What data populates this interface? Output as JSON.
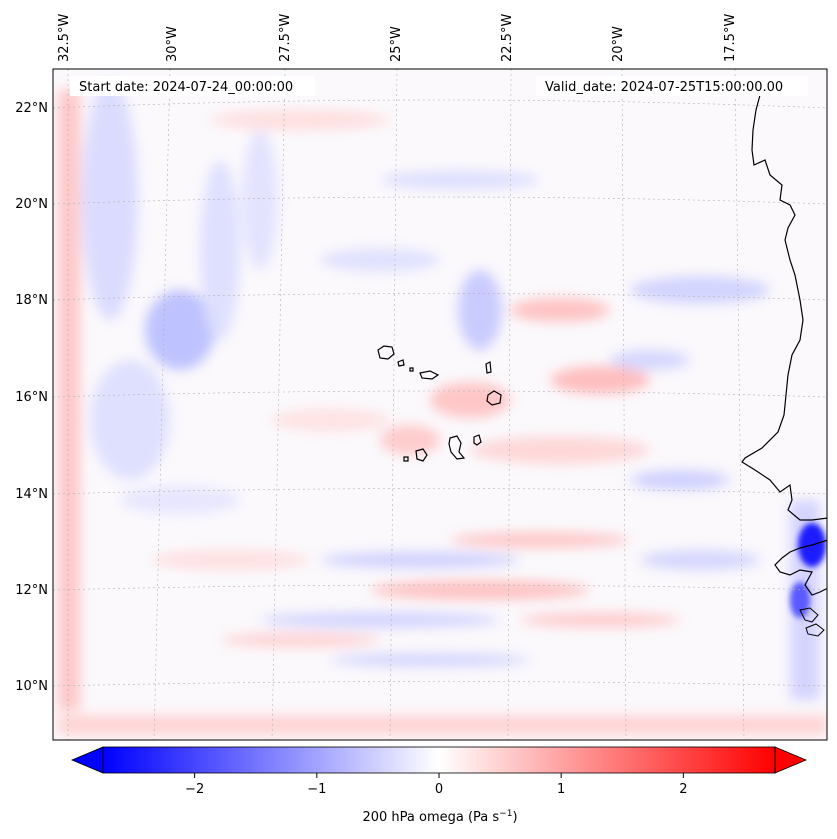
{
  "map": {
    "start_date": "Start date: 2024-07-24_00:00:00",
    "valid_date": "Valid_date: 2024-07-25T15:00:00.00",
    "lon_labels": [
      "32.5°W",
      "30°W",
      "27.5°W",
      "25°W",
      "22.5°W",
      "20°W",
      "17.5°W"
    ],
    "lat_labels": [
      "22°N",
      "20°N",
      "18°N",
      "16°N",
      "14°N",
      "12°N",
      "10°N"
    ],
    "field": "200 hPa omega",
    "extent": {
      "lon": [
        -33.1,
        -15.4
      ],
      "lat": [
        8.9,
        22.7
      ]
    }
  },
  "colorbar": {
    "label_main": "200 hPa omega (Pa s",
    "label_exp": "−1",
    "label_end": ")",
    "ticks": [
      "−2",
      "−1",
      "0",
      "1",
      "2"
    ],
    "tick_values": [
      -2,
      -1,
      0,
      1,
      2
    ],
    "range": [
      -2.75,
      2.75
    ],
    "colors": {
      "low": "#0000ff",
      "mid": "#ffffff",
      "high": "#ff0000"
    }
  }
}
